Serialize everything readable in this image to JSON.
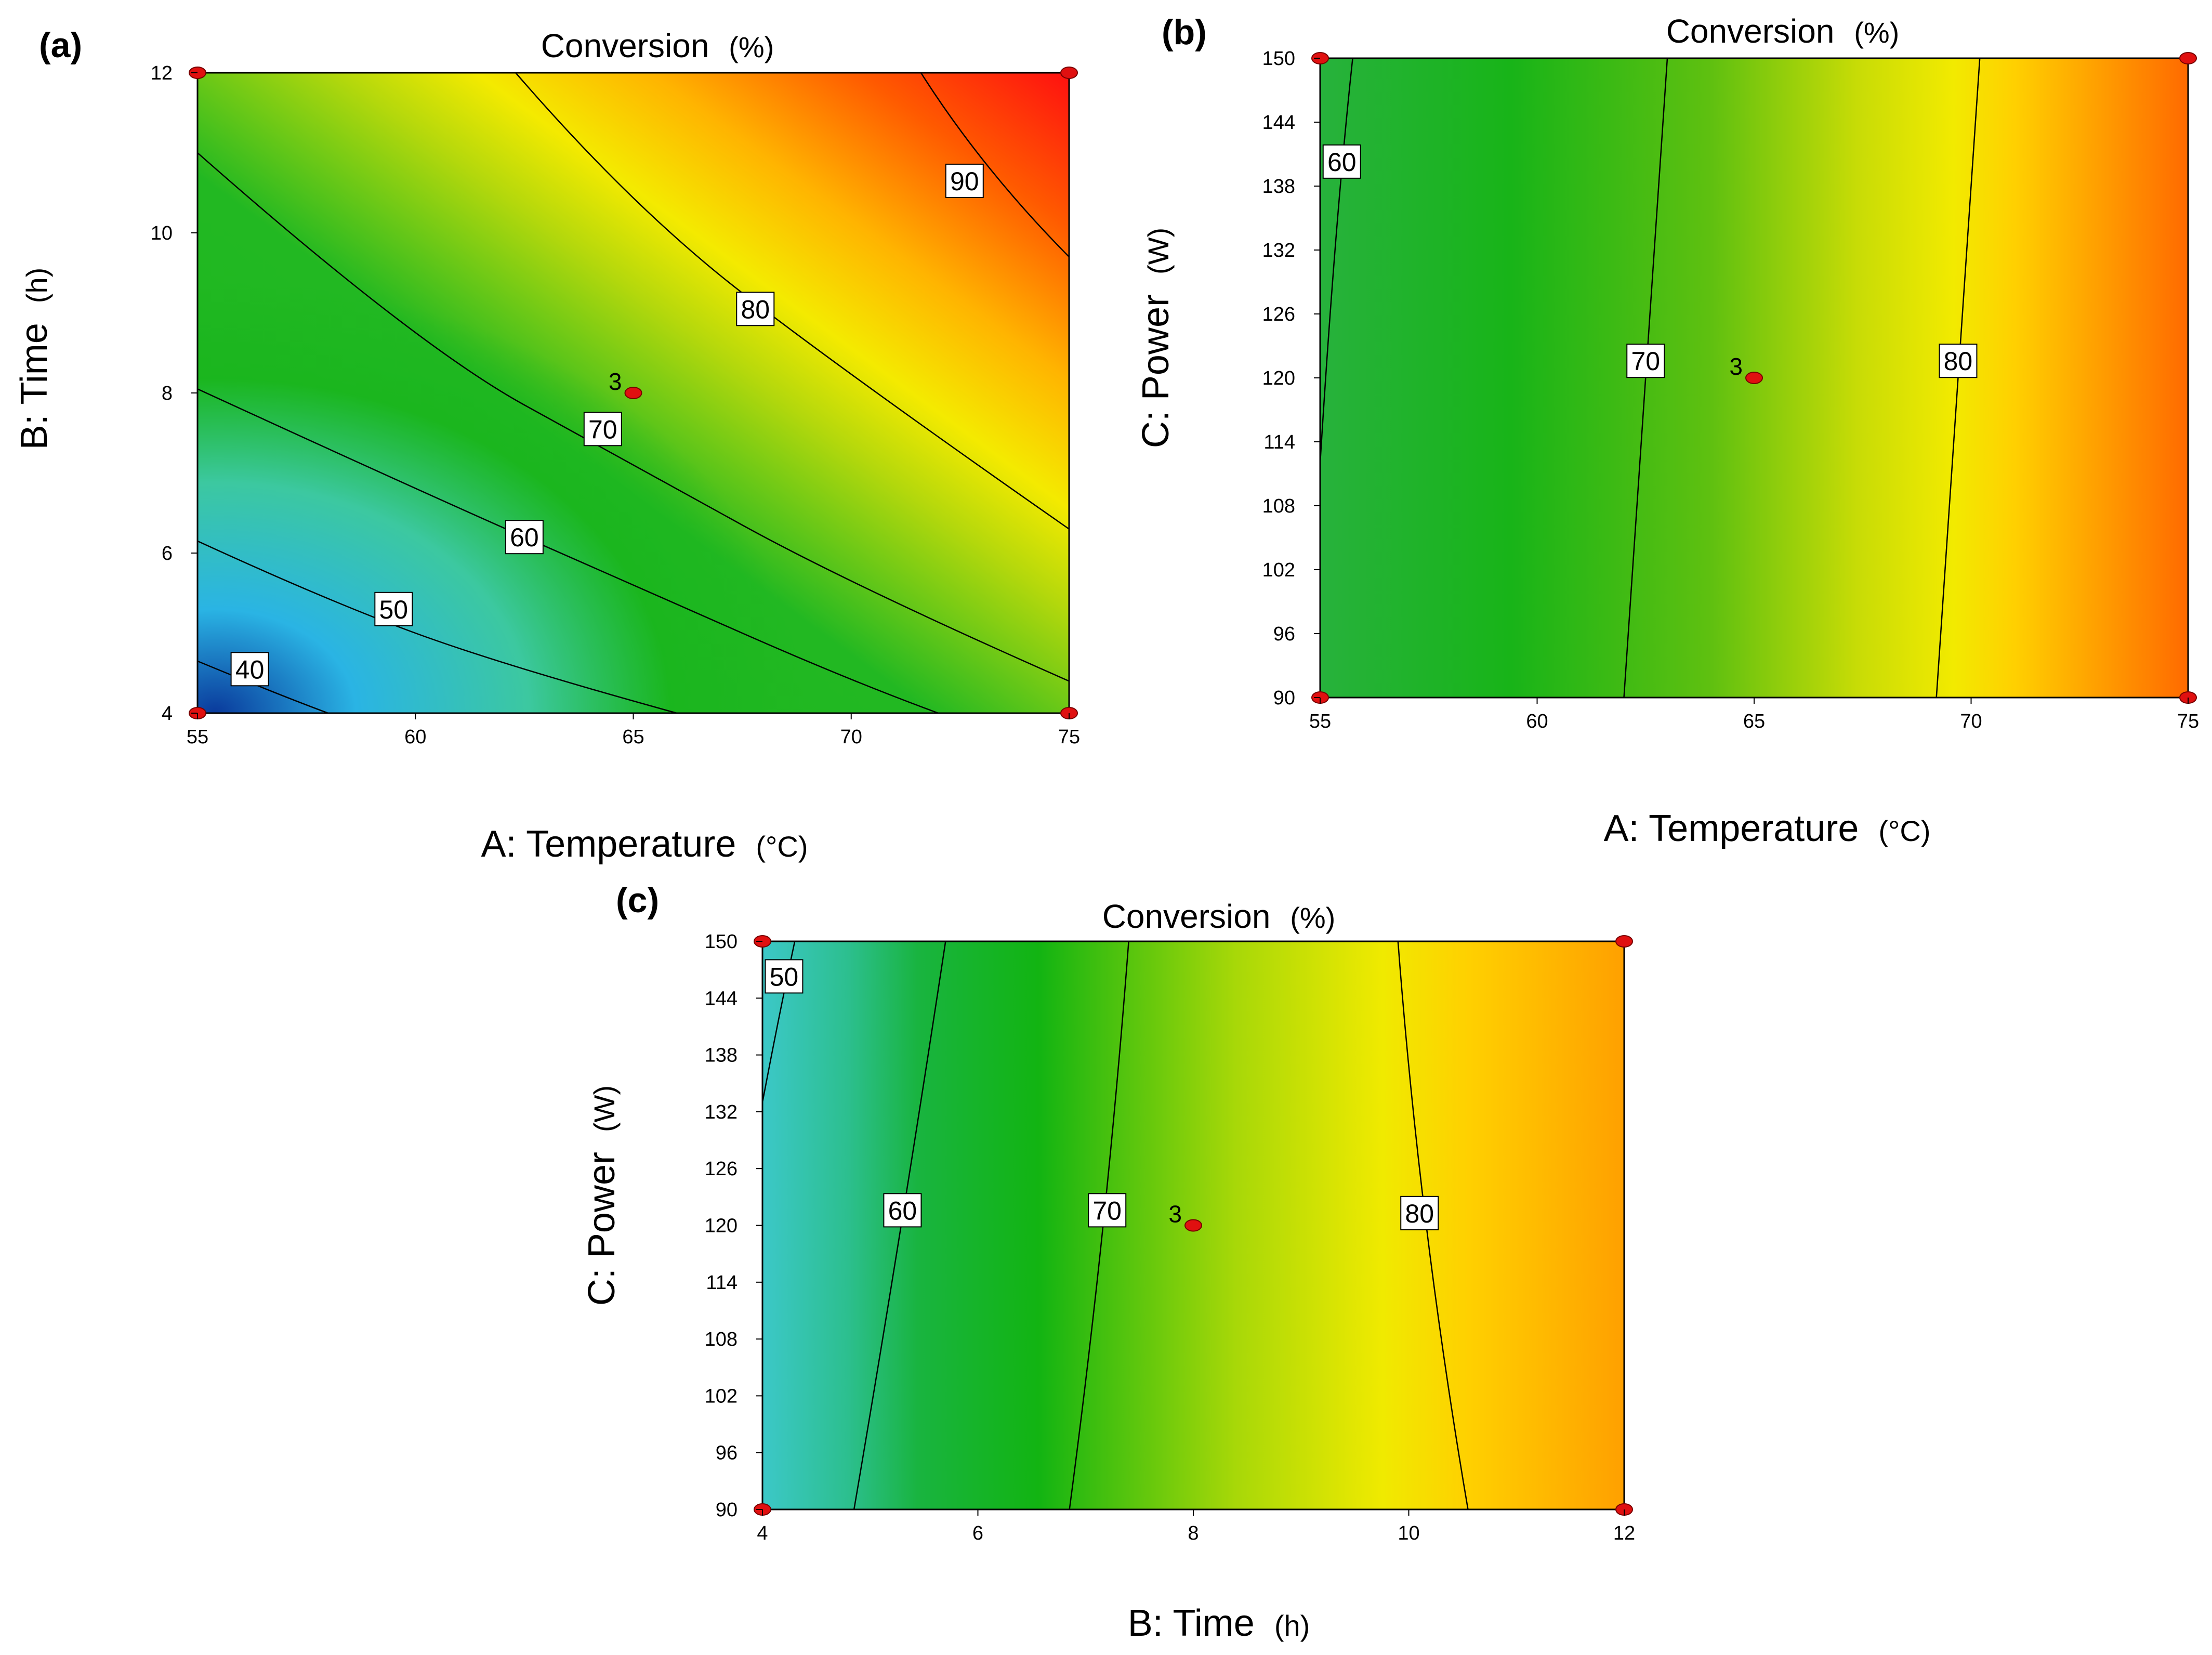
{
  "chart_data": [
    {
      "type": "contour",
      "panel_label": "(a)",
      "title": "Conversion",
      "title_unit": "(%)",
      "xlabel": "A: Temperature",
      "xlabel_unit": "(°C)",
      "ylabel": "B: Time",
      "ylabel_unit": "(h)",
      "xlim": [
        55,
        75
      ],
      "ylim": [
        4,
        12
      ],
      "x_ticks": [
        "55",
        "60",
        "65",
        "70",
        "75"
      ],
      "y_ticks": [
        "4",
        "6",
        "8",
        "10",
        "12"
      ],
      "corner_points": [
        [
          55,
          4
        ],
        [
          55,
          12
        ],
        [
          75,
          4
        ],
        [
          75,
          12
        ]
      ],
      "center_point": {
        "x": 65,
        "y": 8,
        "label": "3"
      },
      "contours": [
        {
          "level": "40",
          "points": [
            [
              55,
              4.65
            ],
            [
              57,
              4.2
            ],
            [
              58,
              4
            ]
          ],
          "label_at": [
            56.2,
            4.55
          ]
        },
        {
          "level": "50",
          "points": [
            [
              55,
              6.15
            ],
            [
              58,
              5.4
            ],
            [
              62,
              4.6
            ],
            [
              66,
              4
            ]
          ],
          "label_at": [
            59.5,
            5.3
          ]
        },
        {
          "level": "60",
          "points": [
            [
              55,
              8.05
            ],
            [
              60,
              6.8
            ],
            [
              65,
              5.6
            ],
            [
              70,
              4.4
            ],
            [
              72,
              4
            ]
          ],
          "label_at": [
            62.5,
            6.2
          ]
        },
        {
          "level": "70",
          "points": [
            [
              55,
              11.0
            ],
            [
              60,
              8.6
            ],
            [
              65,
              7.1
            ],
            [
              70,
              5.6
            ],
            [
              75,
              4.4
            ]
          ],
          "label_at": [
            64.3,
            7.55
          ]
        },
        {
          "level": "80",
          "points": [
            [
              62.3,
              12
            ],
            [
              65,
              10.3
            ],
            [
              70,
              8.2
            ],
            [
              75,
              6.3
            ]
          ],
          "label_at": [
            67.8,
            9.05
          ]
        },
        {
          "level": "90",
          "points": [
            [
              71.6,
              12
            ],
            [
              73,
              10.8
            ],
            [
              75,
              9.7
            ]
          ],
          "label_at": [
            72.6,
            10.65
          ]
        }
      ]
    },
    {
      "type": "contour",
      "panel_label": "(b)",
      "title": "Conversion",
      "title_unit": "(%)",
      "xlabel": "A: Temperature",
      "xlabel_unit": "(°C)",
      "ylabel": "C: Power",
      "ylabel_unit": "(W)",
      "xlim": [
        55,
        75
      ],
      "ylim": [
        90,
        150
      ],
      "x_ticks": [
        "55",
        "60",
        "65",
        "70",
        "75"
      ],
      "y_ticks": [
        "90",
        "96",
        "102",
        "108",
        "114",
        "120",
        "126",
        "132",
        "138",
        "144",
        "150"
      ],
      "corner_points": [
        [
          55,
          90
        ],
        [
          55,
          150
        ],
        [
          75,
          90
        ],
        [
          75,
          150
        ]
      ],
      "center_point": {
        "x": 65,
        "y": 120,
        "label": "3"
      },
      "contours": [
        {
          "level": "60",
          "points": [
            [
              55.0,
              112
            ],
            [
              55.35,
              135
            ],
            [
              55.75,
              150
            ]
          ],
          "label_at": [
            55.5,
            140.3
          ]
        },
        {
          "level": "70",
          "points": [
            [
              62.0,
              90
            ],
            [
              62.5,
              120
            ],
            [
              63.0,
              150
            ]
          ],
          "label_at": [
            62.5,
            121.6
          ]
        },
        {
          "level": "80",
          "points": [
            [
              69.2,
              90
            ],
            [
              69.7,
              120
            ],
            [
              70.2,
              150
            ]
          ],
          "label_at": [
            69.7,
            121.6
          ]
        }
      ]
    },
    {
      "type": "contour",
      "panel_label": "(c)",
      "title": "Conversion",
      "title_unit": "(%)",
      "xlabel": "B: Time",
      "xlabel_unit": "(h)",
      "ylabel": "C: Power",
      "ylabel_unit": "(W)",
      "xlim": [
        4,
        12
      ],
      "ylim": [
        90,
        150
      ],
      "x_ticks": [
        "4",
        "6",
        "8",
        "10",
        "12"
      ],
      "y_ticks": [
        "90",
        "96",
        "102",
        "108",
        "114",
        "120",
        "126",
        "132",
        "138",
        "144",
        "150"
      ],
      "corner_points": [
        [
          4,
          90
        ],
        [
          4,
          150
        ],
        [
          12,
          90
        ],
        [
          12,
          150
        ]
      ],
      "center_point": {
        "x": 8,
        "y": 120,
        "label": "3"
      },
      "contours": [
        {
          "level": "50",
          "points": [
            [
              4.0,
              133
            ],
            [
              4.15,
              142
            ],
            [
              4.3,
              150
            ]
          ],
          "label_at": [
            4.2,
            146.3
          ]
        },
        {
          "level": "60",
          "points": [
            [
              4.85,
              90
            ],
            [
              5.3,
              120
            ],
            [
              5.7,
              150
            ]
          ],
          "label_at": [
            5.3,
            121.6
          ]
        },
        {
          "level": "70",
          "points": [
            [
              6.85,
              90
            ],
            [
              7.2,
              120
            ],
            [
              7.4,
              150
            ]
          ],
          "label_at": [
            7.2,
            121.6
          ]
        },
        {
          "level": "80",
          "points": [
            [
              10.55,
              90
            ],
            [
              10.1,
              120
            ],
            [
              9.9,
              150
            ]
          ],
          "label_at": [
            10.1,
            121.3
          ]
        }
      ]
    }
  ]
}
